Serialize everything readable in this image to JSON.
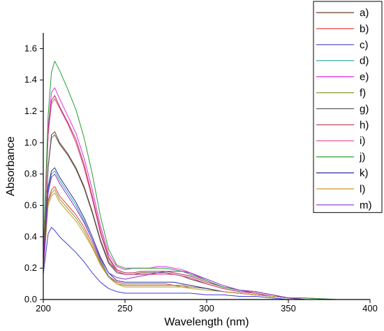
{
  "chart_data": {
    "type": "line",
    "xlabel": "Wavelength (nm)",
    "ylabel": "Absorbance",
    "xlim": [
      200,
      400
    ],
    "ylim": [
      0,
      1.7
    ],
    "x_ticks": [
      200,
      250,
      300,
      350,
      400
    ],
    "y_ticks": [
      0.0,
      0.2,
      0.4,
      0.6,
      0.8,
      1.0,
      1.2,
      1.4,
      1.6
    ],
    "x_tick_labels": [
      "200",
      "250",
      "300",
      "350",
      "400"
    ],
    "y_tick_labels": [
      "0.0",
      "0.2",
      "0.4",
      "0.6",
      "0.8",
      "1.0",
      "1.2",
      "1.4",
      "1.6"
    ],
    "grid": false,
    "legend_position": "top-right",
    "x": [
      200,
      203,
      205,
      207,
      210,
      215,
      220,
      225,
      230,
      235,
      240,
      245,
      250,
      255,
      260,
      265,
      270,
      275,
      280,
      285,
      290,
      300,
      310,
      320,
      330,
      340,
      350,
      360,
      380,
      400
    ],
    "series": [
      {
        "name": "a)",
        "color": "#6b3a2a",
        "values": [
          0.22,
          0.85,
          1.05,
          1.07,
          1.0,
          0.93,
          0.84,
          0.72,
          0.56,
          0.38,
          0.24,
          0.18,
          0.16,
          0.16,
          0.17,
          0.17,
          0.17,
          0.17,
          0.16,
          0.15,
          0.13,
          0.1,
          0.07,
          0.05,
          0.04,
          0.02,
          0.01,
          0.0,
          0.0,
          0.0
        ]
      },
      {
        "name": "b)",
        "color": "#e0443a",
        "values": [
          0.18,
          0.63,
          0.7,
          0.72,
          0.66,
          0.6,
          0.54,
          0.46,
          0.36,
          0.24,
          0.15,
          0.11,
          0.1,
          0.1,
          0.1,
          0.1,
          0.1,
          0.1,
          0.09,
          0.09,
          0.08,
          0.07,
          0.05,
          0.04,
          0.03,
          0.02,
          0.01,
          0.0,
          0.0,
          0.0
        ]
      },
      {
        "name": "c)",
        "color": "#3d3dd6",
        "values": [
          0.16,
          0.42,
          0.46,
          0.44,
          0.4,
          0.35,
          0.3,
          0.24,
          0.17,
          0.11,
          0.07,
          0.05,
          0.04,
          0.04,
          0.04,
          0.04,
          0.04,
          0.04,
          0.04,
          0.04,
          0.04,
          0.03,
          0.03,
          0.02,
          0.02,
          0.01,
          0.0,
          0.0,
          0.0,
          0.0
        ]
      },
      {
        "name": "d)",
        "color": "#2aa6a6",
        "values": [
          0.2,
          0.7,
          0.8,
          0.82,
          0.76,
          0.68,
          0.6,
          0.5,
          0.38,
          0.25,
          0.15,
          0.1,
          0.09,
          0.09,
          0.09,
          0.09,
          0.09,
          0.09,
          0.09,
          0.08,
          0.08,
          0.07,
          0.05,
          0.04,
          0.03,
          0.02,
          0.01,
          0.0,
          0.0,
          0.0
        ]
      },
      {
        "name": "e)",
        "color": "#e030e0",
        "values": [
          0.28,
          1.1,
          1.32,
          1.35,
          1.28,
          1.17,
          1.06,
          0.9,
          0.7,
          0.47,
          0.29,
          0.21,
          0.19,
          0.2,
          0.2,
          0.2,
          0.21,
          0.21,
          0.2,
          0.19,
          0.17,
          0.12,
          0.08,
          0.06,
          0.05,
          0.03,
          0.01,
          0.01,
          0.0,
          0.0
        ]
      },
      {
        "name": "f)",
        "color": "#8a9a2e",
        "values": [
          0.18,
          0.62,
          0.68,
          0.7,
          0.64,
          0.58,
          0.52,
          0.44,
          0.34,
          0.23,
          0.14,
          0.1,
          0.09,
          0.09,
          0.09,
          0.09,
          0.09,
          0.09,
          0.09,
          0.08,
          0.08,
          0.07,
          0.05,
          0.04,
          0.03,
          0.02,
          0.01,
          0.0,
          0.0,
          0.0
        ]
      },
      {
        "name": "g)",
        "color": "#5a5a5a",
        "values": [
          0.21,
          0.84,
          1.03,
          1.05,
          0.99,
          0.92,
          0.83,
          0.71,
          0.55,
          0.37,
          0.23,
          0.17,
          0.16,
          0.16,
          0.16,
          0.16,
          0.17,
          0.17,
          0.16,
          0.15,
          0.13,
          0.1,
          0.07,
          0.05,
          0.04,
          0.02,
          0.01,
          0.0,
          0.0,
          0.0
        ]
      },
      {
        "name": "h)",
        "color": "#b0304a",
        "values": [
          0.26,
          1.06,
          1.27,
          1.3,
          1.23,
          1.13,
          1.02,
          0.86,
          0.66,
          0.44,
          0.27,
          0.19,
          0.17,
          0.17,
          0.18,
          0.18,
          0.18,
          0.18,
          0.17,
          0.16,
          0.15,
          0.11,
          0.08,
          0.06,
          0.04,
          0.02,
          0.01,
          0.0,
          0.0,
          0.0
        ]
      },
      {
        "name": "i)",
        "color": "#e0408a",
        "values": [
          0.27,
          1.05,
          1.25,
          1.28,
          1.22,
          1.12,
          1.0,
          0.84,
          0.64,
          0.42,
          0.26,
          0.18,
          0.16,
          0.16,
          0.16,
          0.16,
          0.16,
          0.16,
          0.16,
          0.15,
          0.14,
          0.1,
          0.07,
          0.05,
          0.04,
          0.02,
          0.01,
          0.0,
          0.0,
          0.0
        ]
      },
      {
        "name": "j)",
        "color": "#23a030",
        "values": [
          0.3,
          1.18,
          1.45,
          1.52,
          1.46,
          1.34,
          1.21,
          1.03,
          0.8,
          0.53,
          0.32,
          0.22,
          0.2,
          0.2,
          0.2,
          0.2,
          0.2,
          0.2,
          0.19,
          0.18,
          0.16,
          0.12,
          0.08,
          0.06,
          0.05,
          0.03,
          0.01,
          0.01,
          0.0,
          0.0
        ]
      },
      {
        "name": "k)",
        "color": "#2a2a9a",
        "values": [
          0.2,
          0.72,
          0.82,
          0.84,
          0.78,
          0.7,
          0.62,
          0.52,
          0.4,
          0.27,
          0.17,
          0.12,
          0.11,
          0.11,
          0.11,
          0.11,
          0.11,
          0.11,
          0.11,
          0.1,
          0.09,
          0.07,
          0.05,
          0.04,
          0.03,
          0.02,
          0.01,
          0.0,
          0.0,
          0.0
        ]
      },
      {
        "name": "l)",
        "color": "#c89a2a",
        "values": [
          0.17,
          0.6,
          0.66,
          0.68,
          0.62,
          0.56,
          0.5,
          0.42,
          0.33,
          0.22,
          0.14,
          0.1,
          0.08,
          0.08,
          0.08,
          0.08,
          0.08,
          0.08,
          0.08,
          0.08,
          0.07,
          0.06,
          0.05,
          0.04,
          0.03,
          0.02,
          0.01,
          0.0,
          0.0,
          0.0
        ]
      },
      {
        "name": "m)",
        "color": "#8a30d0",
        "values": [
          0.19,
          0.68,
          0.78,
          0.8,
          0.74,
          0.66,
          0.58,
          0.49,
          0.38,
          0.26,
          0.17,
          0.14,
          0.13,
          0.14,
          0.15,
          0.16,
          0.17,
          0.18,
          0.18,
          0.18,
          0.17,
          0.13,
          0.09,
          0.06,
          0.05,
          0.03,
          0.01,
          0.0,
          0.0,
          0.0
        ]
      }
    ]
  }
}
